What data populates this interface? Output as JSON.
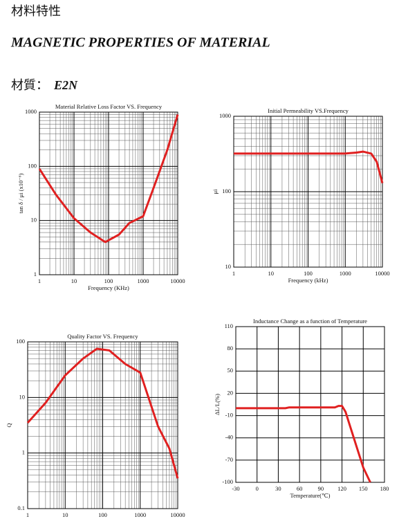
{
  "header": {
    "title_zh": "材料特性",
    "title_en": "MAGNETIC PROPERTIES OF MATERIAL",
    "material_label": "材質：",
    "material": "E2N"
  },
  "chart_data": [
    {
      "type": "line",
      "title": "Material Relative Loss Factor VS. Frequency",
      "x_label": "Frequency (KHz)",
      "y_label": "tan δ / μi (x10⁻⁶)",
      "xscale": "log",
      "yscale": "log",
      "xlim": [
        1,
        10000
      ],
      "ylim": [
        1,
        1000
      ],
      "xticks": [
        1,
        10,
        100,
        1000,
        10000
      ],
      "yticks": [
        1,
        10,
        100,
        1000
      ],
      "grid": true,
      "color": "#e02020",
      "x": [
        1,
        3,
        10,
        30,
        80,
        200,
        400,
        1000,
        2000,
        5000,
        10000
      ],
      "values": [
        90,
        30,
        11,
        6,
        4,
        5.5,
        9,
        12,
        40,
        200,
        900
      ]
    },
    {
      "type": "line",
      "title": "Initial Permeability VS.Frequency",
      "x_label": "Frequency (kHz)",
      "y_label": "μi",
      "xscale": "log",
      "yscale": "log",
      "xlim": [
        1,
        10000
      ],
      "ylim": [
        10,
        1000
      ],
      "xticks": [
        1,
        10,
        100,
        1000,
        10000
      ],
      "yticks": [
        10,
        100,
        1000
      ],
      "grid": true,
      "color": "#e02020",
      "x": [
        1,
        100,
        1000,
        2000,
        3000,
        5000,
        7000,
        10000
      ],
      "values": [
        320,
        320,
        320,
        330,
        340,
        320,
        250,
        130
      ]
    },
    {
      "type": "line",
      "title": "Quality Factor  VS. Frequency",
      "x_label": "Frequency (KHz)",
      "y_label": "Q",
      "xscale": "log",
      "yscale": "log",
      "xlim": [
        1,
        10000
      ],
      "ylim": [
        0.1,
        100
      ],
      "xticks": [
        1,
        10,
        100,
        1000,
        10000
      ],
      "yticks": [
        0.1,
        1,
        10,
        100
      ],
      "grid": true,
      "color": "#e02020",
      "x": [
        1,
        3,
        10,
        30,
        70,
        150,
        400,
        1000,
        3000,
        6000,
        10000
      ],
      "values": [
        3.5,
        8,
        25,
        50,
        75,
        70,
        40,
        28,
        3,
        1.2,
        0.35
      ]
    },
    {
      "type": "line",
      "title": "Inductance Change as a function of Temperature",
      "x_label": "Temperature(℃)",
      "y_label": "ΔL/L(%)",
      "xscale": "linear",
      "yscale": "linear",
      "xlim": [
        -30,
        180
      ],
      "ylim": [
        -100,
        110
      ],
      "xticks": [
        -30,
        0,
        30,
        60,
        90,
        120,
        150,
        180
      ],
      "yticks": [
        110,
        80,
        50,
        20,
        -10,
        -40,
        -70,
        -100
      ],
      "grid": true,
      "color": "#e02020",
      "x": [
        -30,
        40,
        45,
        110,
        115,
        120,
        125,
        130,
        140,
        150,
        160
      ],
      "values": [
        0,
        0,
        1,
        1,
        3,
        3,
        -5,
        -20,
        -50,
        -80,
        -100
      ]
    }
  ]
}
